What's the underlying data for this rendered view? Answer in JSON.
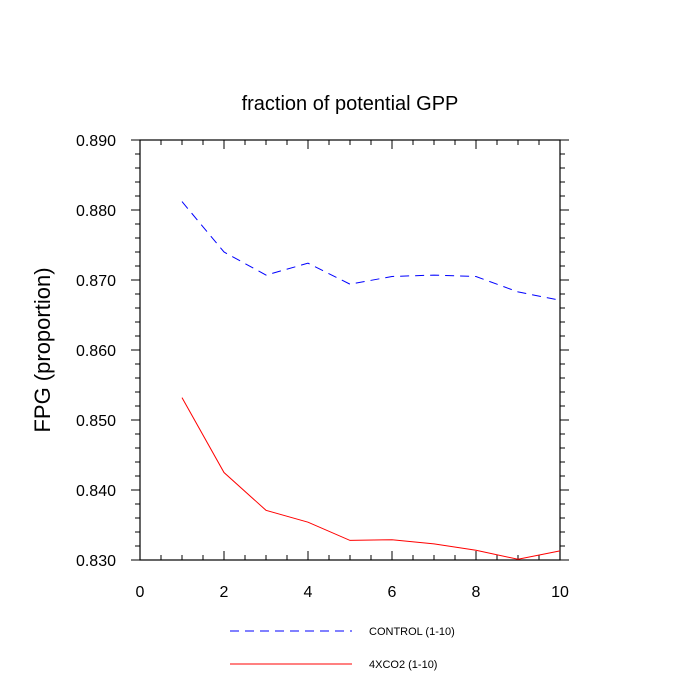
{
  "chart_data": {
    "type": "line",
    "title": "fraction of potential GPP",
    "xlabel": "",
    "ylabel": "FPG  (proportion)",
    "xlim": [
      0,
      10
    ],
    "ylim": [
      0.83,
      0.89
    ],
    "x_ticks": [
      0,
      2,
      4,
      6,
      8,
      10
    ],
    "x_tick_labels": [
      "0",
      "2",
      "4",
      "6",
      "8",
      "10"
    ],
    "y_ticks": [
      0.83,
      0.84,
      0.85,
      0.86,
      0.87,
      0.88,
      0.89
    ],
    "y_tick_labels": [
      "0.830",
      "0.840",
      "0.850",
      "0.860",
      "0.870",
      "0.880",
      "0.890"
    ],
    "grid": false,
    "legend_position": "bottom-center",
    "series": [
      {
        "name": "CONTROL (1-10)",
        "color": "#0000ff",
        "style": "dashed",
        "x": [
          1,
          2,
          3,
          4,
          5,
          6,
          7,
          8,
          9,
          10
        ],
        "values": [
          0.8812,
          0.874,
          0.8707,
          0.8724,
          0.8694,
          0.8705,
          0.8707,
          0.8705,
          0.8683,
          0.8671
        ]
      },
      {
        "name": "4XCO2 (1-10)",
        "color": "#ff0000",
        "style": "solid",
        "x": [
          1,
          2,
          3,
          4,
          5,
          6,
          7,
          8,
          9,
          10
        ],
        "values": [
          0.8532,
          0.8425,
          0.8371,
          0.8354,
          0.8328,
          0.8329,
          0.8323,
          0.8314,
          0.8301,
          0.8313
        ]
      }
    ]
  }
}
